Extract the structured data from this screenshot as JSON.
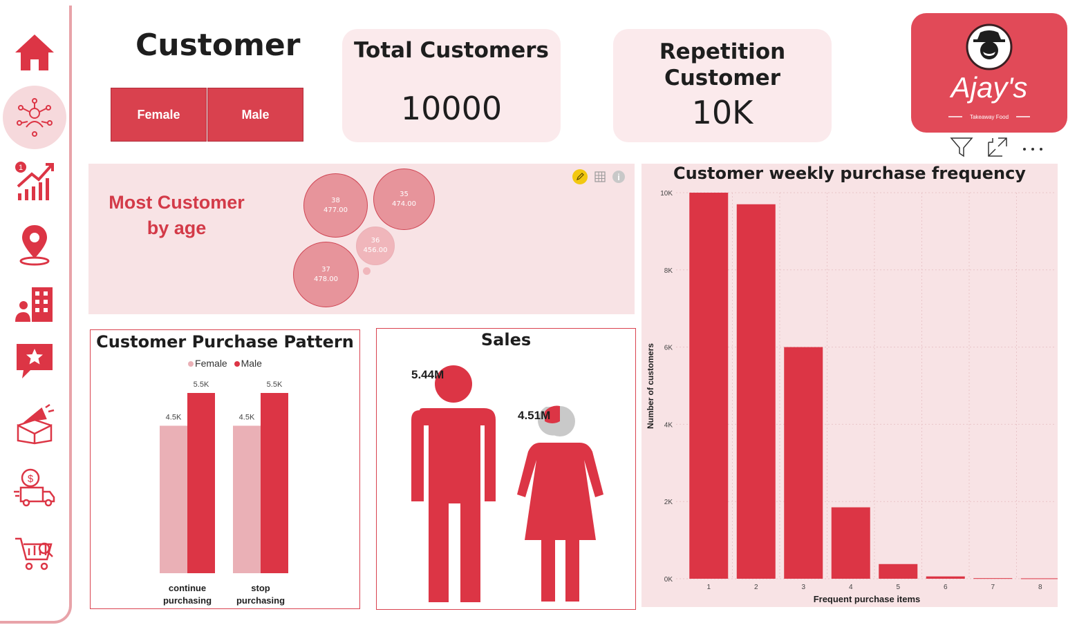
{
  "header": {
    "title": "Customer",
    "gender_slicer": [
      "Female",
      "Male"
    ]
  },
  "cards": {
    "total_customers": {
      "title": "Total Customers",
      "value": "10000"
    },
    "repetition": {
      "title_line1": "Repetition",
      "title_line2": "Customer",
      "value": "10K"
    }
  },
  "logo": {
    "brand": "Ajay's",
    "tagline": "Takeaway Food"
  },
  "sidebar": {
    "items": [
      {
        "icon": "home-icon"
      },
      {
        "icon": "customer-network-icon",
        "active": true
      },
      {
        "icon": "growth-chart-icon"
      },
      {
        "icon": "location-pin-icon"
      },
      {
        "icon": "office-building-icon"
      },
      {
        "icon": "star-review-icon"
      },
      {
        "icon": "marketing-megaphone-icon"
      },
      {
        "icon": "delivery-truck-icon"
      },
      {
        "icon": "shopping-cart-icon"
      }
    ]
  },
  "age_panel": {
    "title_line1": "Most Customer",
    "title_line2": "by age",
    "bubbles": [
      {
        "age": "38",
        "value": "477.00"
      },
      {
        "age": "35",
        "value": "474.00"
      },
      {
        "age": "36",
        "value": "456.00"
      },
      {
        "age": "37",
        "value": "478.00"
      }
    ]
  },
  "colors": {
    "accent": "#dc3545",
    "female": "#eab0b6",
    "male": "#dc3545",
    "panel_bg": "#f8e3e5"
  },
  "chart_data": [
    {
      "type": "bar",
      "title": "Customer Purchase Pattern",
      "categories": [
        [
          "continue",
          "purchasing"
        ],
        [
          "stop",
          "purchasing"
        ]
      ],
      "series": [
        {
          "name": "Female",
          "values": [
            4500,
            4500
          ],
          "labels": [
            "4.5K",
            "4.5K"
          ]
        },
        {
          "name": "Male",
          "values": [
            5500,
            5500
          ],
          "labels": [
            "5.5K",
            "5.5K"
          ]
        }
      ],
      "ylim": [
        0,
        5500
      ]
    },
    {
      "type": "bar",
      "title": "Sales",
      "categories": [
        "Male",
        "Female"
      ],
      "values": [
        5.44,
        4.51
      ],
      "labels": [
        "5.44M",
        "4.51M"
      ]
    },
    {
      "type": "bar",
      "title": "Customer weekly purchase frequency",
      "xlabel": "Frequent purchase items",
      "ylabel": "Number of customers",
      "categories": [
        "1",
        "2",
        "3",
        "4",
        "5",
        "6",
        "7",
        "8"
      ],
      "values": [
        10000,
        9700,
        6000,
        1850,
        380,
        60,
        15,
        10
      ],
      "yticks": [
        {
          "value": 0,
          "label": "0K"
        },
        {
          "value": 2000,
          "label": "2K"
        },
        {
          "value": 4000,
          "label": "4K"
        },
        {
          "value": 6000,
          "label": "6K"
        },
        {
          "value": 8000,
          "label": "8K"
        },
        {
          "value": 10000,
          "label": "10K"
        }
      ],
      "ylim": [
        0,
        10000
      ],
      "grid": true
    }
  ]
}
